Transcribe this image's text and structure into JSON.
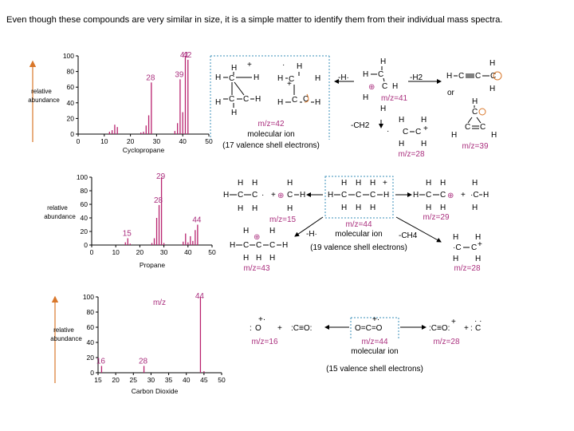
{
  "caption": "Even though these compounds are very similar in size, it is a simple matter to identify them from their individual mass spectra.",
  "colors": {
    "peak": "#b8236f",
    "label": "#aa2f7e",
    "arrow": "#d9772a",
    "box": "#3a8fb8"
  },
  "yaxis_label": [
    "relative",
    "abundance"
  ],
  "chart_data": [
    {
      "type": "bar",
      "title": "Cyclopropane",
      "xlim": [
        0,
        50
      ],
      "ylim": [
        0,
        100
      ],
      "xticks": [
        "0",
        "10",
        "20",
        "30",
        "40",
        "50"
      ],
      "yticks": [
        "0",
        "20",
        "40",
        "60",
        "80",
        "100"
      ],
      "x": [
        12,
        13,
        14,
        15,
        24,
        25,
        26,
        27,
        28,
        37,
        38,
        39,
        40,
        41,
        42
      ],
      "y": [
        3,
        5,
        12,
        9,
        2,
        3,
        11,
        24,
        66,
        4,
        14,
        70,
        28,
        100,
        95
      ],
      "peak_labels": [
        {
          "x": 28,
          "text": "28"
        },
        {
          "x": 39,
          "text": "39"
        },
        {
          "x": 41,
          "text": "41"
        },
        {
          "x": 42,
          "text": "42"
        }
      ]
    },
    {
      "type": "bar",
      "title": "Propane",
      "xlim": [
        0,
        50
      ],
      "ylim": [
        0,
        100
      ],
      "xticks": [
        "0",
        "10",
        "20",
        "30",
        "40",
        "50"
      ],
      "yticks": [
        "0",
        "20",
        "40",
        "60",
        "80",
        "100"
      ],
      "x": [
        14,
        15,
        16,
        25,
        26,
        27,
        28,
        29,
        30,
        38,
        39,
        40,
        41,
        42,
        43,
        44
      ],
      "y": [
        4,
        10,
        2,
        3,
        10,
        40,
        59,
        100,
        3,
        5,
        17,
        4,
        13,
        6,
        22,
        30
      ],
      "peak_labels": [
        {
          "x": 15,
          "text": "15"
        },
        {
          "x": 28,
          "text": "28"
        },
        {
          "x": 29,
          "text": "29"
        },
        {
          "x": 44,
          "text": "44"
        }
      ]
    },
    {
      "type": "bar",
      "title": "Carbon Dioxide",
      "xlim": [
        15,
        50
      ],
      "ylim": [
        0,
        100
      ],
      "xticks": [
        "15",
        "20",
        "25",
        "30",
        "35",
        "40",
        "45",
        "50"
      ],
      "yticks": [
        "0",
        "20",
        "40",
        "60",
        "80",
        "100"
      ],
      "x": [
        16,
        28,
        44,
        45
      ],
      "y": [
        9,
        9,
        100,
        2
      ],
      "peak_labels": [
        {
          "x": 16,
          "text": "16"
        },
        {
          "x": 28,
          "text": "28"
        },
        {
          "x": 44,
          "text": "44"
        }
      ],
      "annotation": "m/z"
    }
  ],
  "schemes": {
    "cyclopropane": {
      "molecular_ion": "m/z=42",
      "molecular_ion_title": "molecular ion",
      "valence_note": "(17 valence shell electrons)",
      "ion_41": "m/z=41",
      "ion_28": "m/z=28",
      "ion_39": "m/z=39",
      "loss_h": "-H·",
      "loss_h2": "-H2",
      "loss_ch2": "-CH2",
      "radical_dot": "·"
    },
    "propane": {
      "ion_15": "m/z=15",
      "ion_44": "m/z=44",
      "molecular_ion_title": "molecular ion",
      "valence_note": "(19 valence shell electrons)",
      "ion_29": "m/z=29",
      "ion_43": "m/z=43",
      "ion_28": "m/z=28",
      "loss_h": "-H·",
      "loss_ch4": "-CH4"
    },
    "co2": {
      "o_radical": "O",
      "co_fragment": ":C≡O:",
      "co2_ion": "O=C=O",
      "co_plus": ":C≡O:",
      "c_radical": "C",
      "plus": "+",
      "ion_16": "m/z=16",
      "ion_44": "m/z=44",
      "ion_28": "m/z=28",
      "molecular_ion_title": "molecular ion",
      "valence_note": "(15 valence shell electrons)"
    }
  }
}
